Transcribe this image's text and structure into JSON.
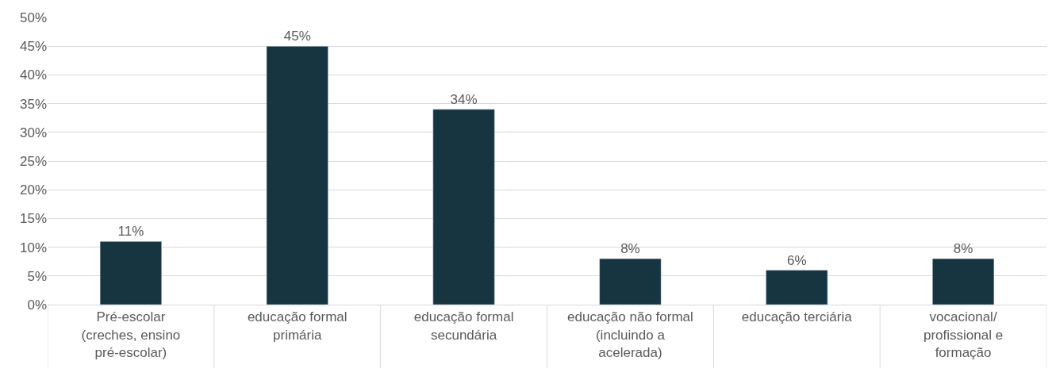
{
  "chart_data": {
    "type": "bar",
    "categories": [
      "Pré-escolar (creches, ensino pré-escolar)",
      "educação formal primária",
      "educação formal secundária",
      "educação não formal (incluindo a acelerada)",
      "educação terciária",
      "vocacional/ profissional e formação"
    ],
    "values": [
      11,
      45,
      34,
      8,
      6,
      8
    ],
    "value_labels": [
      "11%",
      "45%",
      "34%",
      "8%",
      "6%",
      "8%"
    ],
    "color": "#173441",
    "ylim": [
      0,
      50
    ],
    "yticks": [
      {
        "value": 0,
        "label": "0%"
      },
      {
        "value": 5,
        "label": "5%"
      },
      {
        "value": 10,
        "label": "10%"
      },
      {
        "value": 15,
        "label": "15%"
      },
      {
        "value": 20,
        "label": "20%"
      },
      {
        "value": 25,
        "label": "25%"
      },
      {
        "value": 30,
        "label": "30%"
      },
      {
        "value": 35,
        "label": "35%"
      },
      {
        "value": 40,
        "label": "40%"
      },
      {
        "value": 45,
        "label": "45%"
      },
      {
        "value": 50,
        "label": "50%"
      }
    ],
    "grid": "y"
  }
}
